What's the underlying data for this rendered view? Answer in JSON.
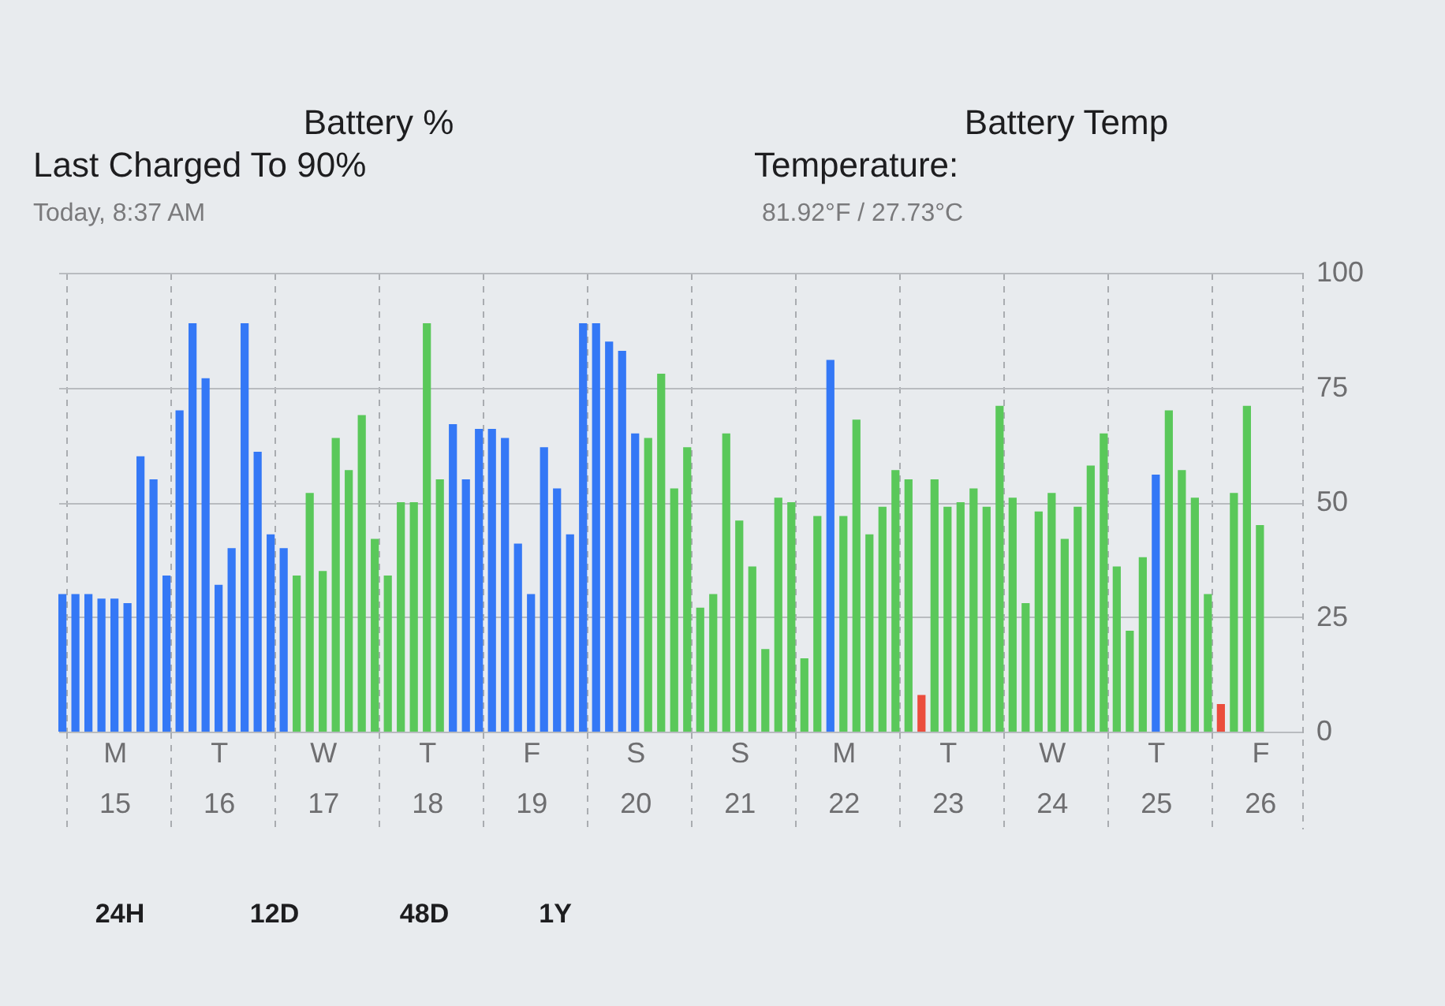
{
  "chart_data": {
    "type": "bar",
    "annotations": [
      "Battery %",
      "Battery Temp",
      "Last Charged To 90%",
      "Today, 8:37 AM",
      "Temperature:",
      "81.92°F / 27.73°C",
      "24H",
      "12D",
      "48D",
      "1Y"
    ],
    "categories": [
      null,
      null,
      null,
      null,
      "M\n15",
      null,
      null,
      null,
      null,
      null,
      null,
      null,
      "T\n16",
      null,
      null,
      null,
      null,
      null,
      null,
      null,
      "W\n17",
      null,
      null,
      null,
      null,
      null,
      null,
      null,
      "T\n18",
      null,
      null,
      null,
      null,
      null,
      null,
      null,
      "F\n19",
      null,
      null,
      null,
      null,
      null,
      null,
      null,
      "S\n20",
      null,
      null,
      null,
      null,
      null,
      null,
      null,
      "S\n21",
      null,
      null,
      null,
      null,
      null,
      null,
      null,
      "M\n22",
      null,
      null,
      null,
      null,
      null,
      null,
      null,
      "T\n23",
      null,
      null,
      null,
      null,
      null,
      null,
      null,
      "W\n24",
      null,
      null,
      null,
      null,
      null,
      null,
      null,
      "T\n25",
      null,
      null,
      null,
      null,
      null,
      null,
      null,
      "F\n26",
      null,
      null,
      null
    ],
    "values": [
      30,
      30,
      30,
      29,
      29,
      28,
      60,
      55,
      34,
      70,
      89,
      77,
      32,
      40,
      89,
      61,
      43,
      40,
      34,
      52,
      35,
      64,
      57,
      69,
      42,
      34,
      50,
      50,
      89,
      55,
      67,
      55,
      66,
      66,
      64,
      41,
      30,
      62,
      53,
      43,
      89,
      89,
      85,
      83,
      65,
      64,
      78,
      53,
      62,
      27,
      30,
      65,
      46,
      36,
      18,
      51,
      50,
      16,
      47,
      81,
      47,
      68,
      43,
      49,
      57,
      55,
      8,
      55,
      49,
      50,
      53,
      49,
      71,
      51,
      28,
      48,
      52,
      42,
      49,
      58,
      65,
      36,
      22,
      38,
      56,
      70,
      57,
      51,
      30,
      6,
      52,
      71,
      45,
      null,
      null,
      null
    ],
    "colors": [
      "#3478f6",
      "#3478f6",
      "#3478f6",
      "#3478f6",
      "#3478f6",
      "#3478f6",
      "#3478f6",
      "#3478f6",
      "#3478f6",
      "#3478f6",
      "#3478f6",
      "#3478f6",
      "#3478f6",
      "#3478f6",
      "#3478f6",
      "#3478f6",
      "#3478f6",
      "#3478f6",
      "#5ac85a",
      "#5ac85a",
      "#5ac85a",
      "#5ac85a",
      "#5ac85a",
      "#5ac85a",
      "#5ac85a",
      "#5ac85a",
      "#5ac85a",
      "#5ac85a",
      "#5ac85a",
      "#5ac85a",
      "#3478f6",
      "#3478f6",
      "#3478f6",
      "#3478f6",
      "#3478f6",
      "#3478f6",
      "#3478f6",
      "#3478f6",
      "#3478f6",
      "#3478f6",
      "#3478f6",
      "#3478f6",
      "#3478f6",
      "#3478f6",
      "#3478f6",
      "#5ac85a",
      "#5ac85a",
      "#5ac85a",
      "#5ac85a",
      "#5ac85a",
      "#5ac85a",
      "#5ac85a",
      "#5ac85a",
      "#5ac85a",
      "#5ac85a",
      "#5ac85a",
      "#5ac85a",
      "#5ac85a",
      "#5ac85a",
      "#3478f6",
      "#5ac85a",
      "#5ac85a",
      "#5ac85a",
      "#5ac85a",
      "#5ac85a",
      "#5ac85a",
      "#eb4d3d",
      "#5ac85a",
      "#5ac85a",
      "#5ac85a",
      "#5ac85a",
      "#5ac85a",
      "#5ac85a",
      "#5ac85a",
      "#5ac85a",
      "#5ac85a",
      "#5ac85a",
      "#5ac85a",
      "#5ac85a",
      "#5ac85a",
      "#5ac85a",
      "#5ac85a",
      "#5ac85a",
      "#5ac85a",
      "#3478f6",
      "#5ac85a",
      "#5ac85a",
      "#5ac85a",
      "#5ac85a",
      "#eb4d3d",
      "#5ac85a",
      "#5ac85a",
      "#5ac85a",
      "#5ac85a",
      "#5ac85a",
      "#5ac85a"
    ],
    "ylim": [
      0,
      100
    ],
    "yticks": [
      0,
      25,
      50,
      75,
      100
    ],
    "grid": true
  }
}
